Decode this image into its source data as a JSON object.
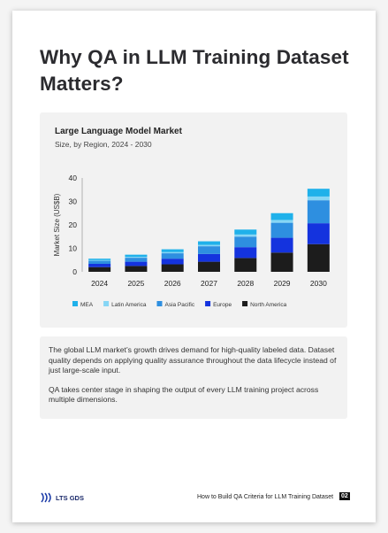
{
  "header": {
    "title": "Why QA in LLM Training Dataset Matters?"
  },
  "chart_data": {
    "type": "stacked-bar",
    "title": "Large Language Model Market",
    "subtitle": "Size, by Region, 2024 - 2030",
    "y_label": "Market Size (US$B)",
    "categories": [
      "2024",
      "2025",
      "2026",
      "2027",
      "2028",
      "2029",
      "2030"
    ],
    "series": [
      {
        "name": "North America",
        "color": "#1c1c1c",
        "values": [
          2.0,
          2.5,
          3.2,
          4.3,
          5.9,
          8.2,
          11.8
        ]
      },
      {
        "name": "Europe",
        "color": "#1433de",
        "values": [
          1.4,
          1.8,
          2.4,
          3.3,
          4.6,
          6.3,
          8.9
        ]
      },
      {
        "name": "Asia Pacific",
        "color": "#2e8fe0",
        "values": [
          1.3,
          1.7,
          2.3,
          3.3,
          4.5,
          6.4,
          9.8
        ]
      },
      {
        "name": "Latin America",
        "color": "#86d6f5",
        "values": [
          0.3,
          0.4,
          0.5,
          0.6,
          0.9,
          1.2,
          1.6
        ]
      },
      {
        "name": "MEA",
        "color": "#1fb1ea",
        "values": [
          0.6,
          0.9,
          1.2,
          1.5,
          2.1,
          2.9,
          3.3
        ]
      }
    ],
    "ylim": [
      0,
      40
    ],
    "yticks": [
      0,
      10,
      20,
      30,
      40
    ],
    "grid": false
  },
  "body": {
    "paragraphs": [
      "The global LLM market’s growth drives demand for high-quality labeled data. Dataset quality depends on applying quality assurance throughout the data lifecycle instead of just large-scale input.",
      "QA takes center stage in shaping the output of every LLM training project across multiple dimensions."
    ]
  },
  "footer": {
    "logo": "LTS GDS",
    "text": "How to Build QA Criteria for LLM Training Dataset",
    "page": "02"
  }
}
